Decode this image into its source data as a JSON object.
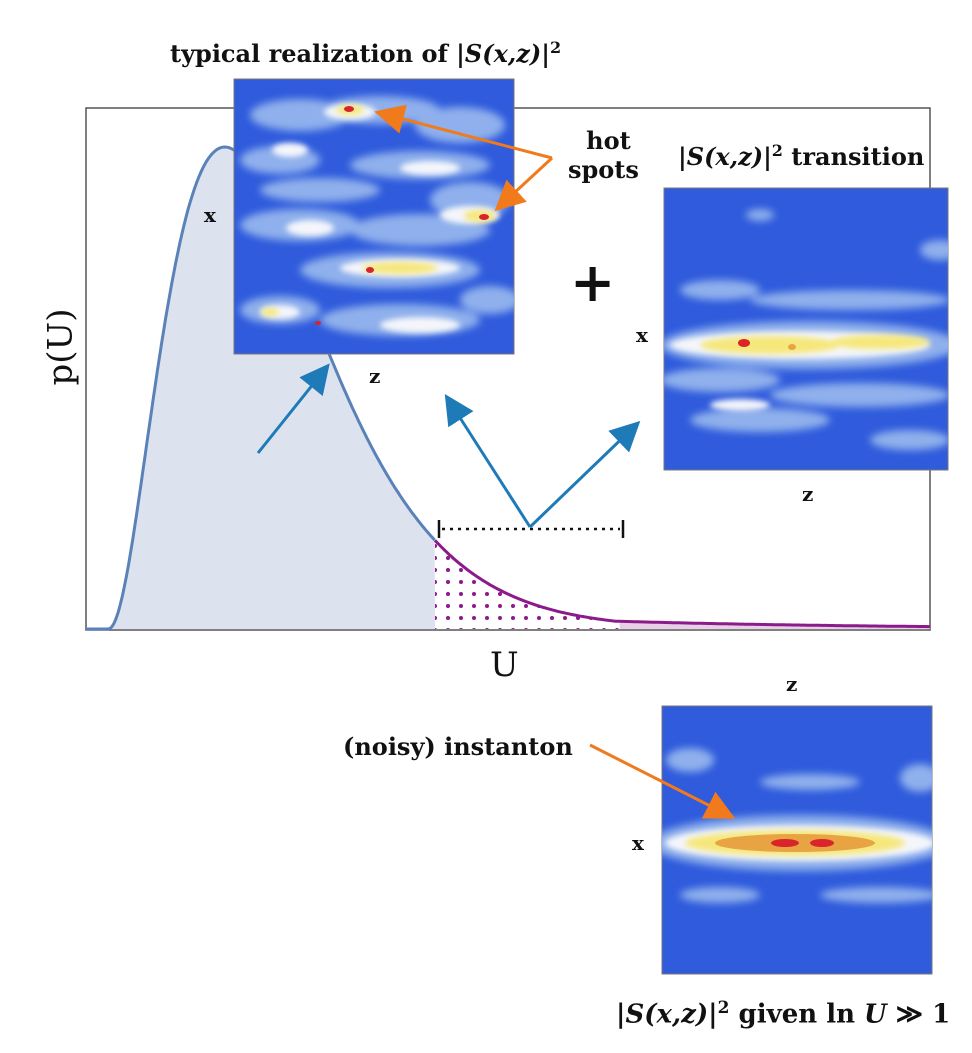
{
  "axes": {
    "xlabel": "U",
    "ylabel": "p(U)"
  },
  "operator": "+",
  "panels": {
    "typical": {
      "title_pre": "typical realization of",
      "title_math": "|S(x,z)|",
      "title_pow": "2",
      "x_label": "x",
      "z_label": "z",
      "callout_line1": "hot",
      "callout_line2": "spots"
    },
    "transition": {
      "title_math": "|S(x,z)|",
      "title_pow": "2",
      "title_post": "transition",
      "x_label": "x",
      "z_label": "z"
    },
    "instanton": {
      "callout": "(noisy) instanton",
      "x_label": "x",
      "z_label": "z",
      "caption_math": "|S(x,z)|",
      "caption_pow": "2",
      "caption_mid": "given ln",
      "caption_math2": "U",
      "caption_post": "≫ 1"
    }
  },
  "colors": {
    "body_fill": "#dce3ee",
    "curve_body": "#5b82b8",
    "curve_tail": "#8b1a8b",
    "tail_fill": "#e7cfe6",
    "arrow_blue": "#1f7ab8",
    "arrow_orange": "#f07a1c",
    "field_bg": "#2f5bdc",
    "field_light": "#8fb0ec",
    "field_white": "#f4f6fb",
    "field_yellow": "#f6e77a",
    "field_orange": "#e8a443",
    "field_red": "#d8242a"
  }
}
